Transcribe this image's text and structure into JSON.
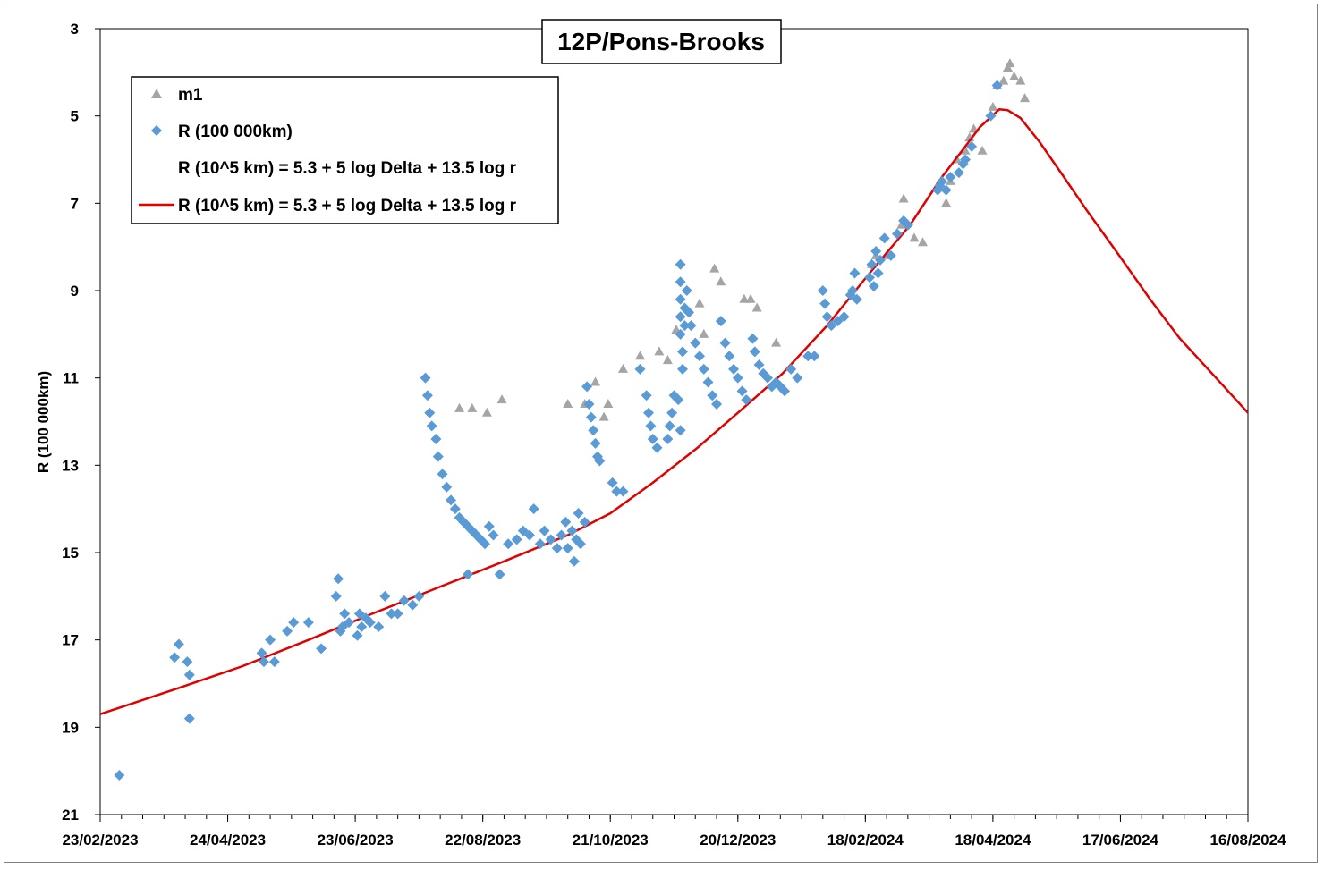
{
  "chart_data": {
    "type": "scatter",
    "title": "12P/Pons-Brooks",
    "xlabel": "",
    "ylabel": "R (100 000km)",
    "x_type": "date",
    "xlim": [
      "2023-02-23",
      "2024-08-16"
    ],
    "ylim": [
      3,
      21
    ],
    "y_inverted": true,
    "x_tick_labels": [
      "23/02/2023",
      "24/04/2023",
      "23/06/2023",
      "22/08/2023",
      "21/10/2023",
      "20/12/2023",
      "18/02/2024",
      "18/04/2024",
      "17/06/2024",
      "16/08/2024"
    ],
    "y_tick_labels": [
      "3",
      "5",
      "7",
      "9",
      "11",
      "13",
      "15",
      "17",
      "19",
      "21"
    ],
    "grid": false,
    "legend_position": "top-left",
    "colors": {
      "m1": "#a5a5a5",
      "R": "#5b9bd5",
      "model": "#e00000"
    },
    "legend": [
      {
        "label": "m1",
        "marker": "triangle",
        "color": "#a5a5a5"
      },
      {
        "label": "R (100 000km)",
        "marker": "diamond",
        "color": "#5b9bd5"
      },
      {
        "label": "R (10^5 km) = 5.3 + 5 log Delta + 13.5 log r",
        "marker": "none",
        "color": "none"
      },
      {
        "label": "R (10^5 km) = 5.3 + 5 log Delta + 13.5 log r",
        "marker": "line",
        "color": "#e00000"
      }
    ],
    "series": [
      {
        "name": "m1",
        "marker": "triangle",
        "points": [
          [
            "2023-08-11",
            11.7
          ],
          [
            "2023-08-17",
            11.7
          ],
          [
            "2023-08-24",
            11.8
          ],
          [
            "2023-08-31",
            11.5
          ],
          [
            "2023-10-01",
            11.6
          ],
          [
            "2023-10-09",
            11.6
          ],
          [
            "2023-10-14",
            11.1
          ],
          [
            "2023-10-20",
            11.6
          ],
          [
            "2023-10-27",
            10.8
          ],
          [
            "2023-10-18",
            11.9
          ],
          [
            "2023-11-04",
            10.5
          ],
          [
            "2023-11-13",
            10.4
          ],
          [
            "2023-11-17",
            10.6
          ],
          [
            "2023-11-21",
            9.9
          ],
          [
            "2023-12-02",
            9.3
          ],
          [
            "2023-12-04",
            10.0
          ],
          [
            "2023-12-09",
            8.5
          ],
          [
            "2023-12-12",
            8.8
          ],
          [
            "2023-12-23",
            9.2
          ],
          [
            "2023-12-26",
            9.2
          ],
          [
            "2023-12-29",
            9.4
          ],
          [
            "2024-01-07",
            10.2
          ],
          [
            "2024-02-21",
            8.4
          ],
          [
            "2024-02-23",
            8.2
          ],
          [
            "2024-02-28",
            8.2
          ],
          [
            "2024-03-06",
            7.5
          ],
          [
            "2024-03-07",
            6.9
          ],
          [
            "2024-03-12",
            7.8
          ],
          [
            "2024-03-16",
            7.9
          ],
          [
            "2024-03-23",
            6.6
          ],
          [
            "2024-03-27",
            7.0
          ],
          [
            "2024-03-29",
            6.5
          ],
          [
            "2024-04-01",
            6.0
          ],
          [
            "2024-04-05",
            5.8
          ],
          [
            "2024-04-07",
            5.5
          ],
          [
            "2024-04-09",
            5.3
          ],
          [
            "2024-04-13",
            5.8
          ],
          [
            "2024-04-18",
            4.8
          ],
          [
            "2024-04-20",
            4.3
          ],
          [
            "2024-04-25",
            3.9
          ],
          [
            "2024-04-28",
            4.1
          ],
          [
            "2024-05-01",
            4.2
          ],
          [
            "2024-05-03",
            4.6
          ],
          [
            "2024-04-26",
            3.8
          ],
          [
            "2024-04-23",
            4.2
          ]
        ]
      },
      {
        "name": "R (100 000km)",
        "marker": "diamond",
        "points": [
          [
            "2023-03-04",
            20.1
          ],
          [
            "2023-03-30",
            17.4
          ],
          [
            "2023-04-01",
            17.1
          ],
          [
            "2023-04-05",
            17.5
          ],
          [
            "2023-04-06",
            17.8
          ],
          [
            "2023-04-06",
            18.8
          ],
          [
            "2023-05-10",
            17.3
          ],
          [
            "2023-05-11",
            17.5
          ],
          [
            "2023-05-14",
            17.0
          ],
          [
            "2023-05-16",
            17.5
          ],
          [
            "2023-05-22",
            16.8
          ],
          [
            "2023-05-25",
            16.6
          ],
          [
            "2023-06-01",
            16.6
          ],
          [
            "2023-06-07",
            17.2
          ],
          [
            "2023-06-14",
            16.0
          ],
          [
            "2023-06-15",
            15.6
          ],
          [
            "2023-06-16",
            16.8
          ],
          [
            "2023-06-17",
            16.7
          ],
          [
            "2023-06-18",
            16.4
          ],
          [
            "2023-06-20",
            16.6
          ],
          [
            "2023-06-24",
            16.9
          ],
          [
            "2023-06-25",
            16.4
          ],
          [
            "2023-06-26",
            16.7
          ],
          [
            "2023-06-28",
            16.5
          ],
          [
            "2023-06-30",
            16.6
          ],
          [
            "2023-07-04",
            16.7
          ],
          [
            "2023-07-07",
            16.0
          ],
          [
            "2023-07-10",
            16.4
          ],
          [
            "2023-07-13",
            16.4
          ],
          [
            "2023-07-16",
            16.1
          ],
          [
            "2023-07-20",
            16.2
          ],
          [
            "2023-07-23",
            16.0
          ],
          [
            "2023-07-26",
            11.0
          ],
          [
            "2023-07-27",
            11.4
          ],
          [
            "2023-07-28",
            11.8
          ],
          [
            "2023-07-29",
            12.1
          ],
          [
            "2023-07-31",
            12.4
          ],
          [
            "2023-08-01",
            12.8
          ],
          [
            "2023-08-03",
            13.2
          ],
          [
            "2023-08-05",
            13.5
          ],
          [
            "2023-08-07",
            13.8
          ],
          [
            "2023-08-09",
            14.0
          ],
          [
            "2023-08-11",
            14.2
          ],
          [
            "2023-08-13",
            14.3
          ],
          [
            "2023-08-15",
            14.4
          ],
          [
            "2023-08-17",
            14.5
          ],
          [
            "2023-08-19",
            14.6
          ],
          [
            "2023-08-21",
            14.7
          ],
          [
            "2023-08-23",
            14.8
          ],
          [
            "2023-08-25",
            14.4
          ],
          [
            "2023-08-27",
            14.6
          ],
          [
            "2023-08-15",
            15.5
          ],
          [
            "2023-08-30",
            15.5
          ],
          [
            "2023-09-03",
            14.8
          ],
          [
            "2023-09-07",
            14.7
          ],
          [
            "2023-09-10",
            14.5
          ],
          [
            "2023-09-13",
            14.6
          ],
          [
            "2023-09-15",
            14.0
          ],
          [
            "2023-09-18",
            14.8
          ],
          [
            "2023-09-20",
            14.5
          ],
          [
            "2023-09-23",
            14.7
          ],
          [
            "2023-09-26",
            14.9
          ],
          [
            "2023-09-28",
            14.6
          ],
          [
            "2023-09-30",
            14.3
          ],
          [
            "2023-10-01",
            14.9
          ],
          [
            "2023-10-03",
            14.5
          ],
          [
            "2023-10-04",
            15.2
          ],
          [
            "2023-10-05",
            14.7
          ],
          [
            "2023-10-06",
            14.1
          ],
          [
            "2023-10-07",
            14.8
          ],
          [
            "2023-10-09",
            14.3
          ],
          [
            "2023-10-10",
            11.2
          ],
          [
            "2023-10-11",
            11.6
          ],
          [
            "2023-10-12",
            11.9
          ],
          [
            "2023-10-13",
            12.2
          ],
          [
            "2023-10-14",
            12.5
          ],
          [
            "2023-10-15",
            12.8
          ],
          [
            "2023-10-16",
            12.9
          ],
          [
            "2023-10-22",
            13.4
          ],
          [
            "2023-10-24",
            13.6
          ],
          [
            "2023-10-27",
            13.6
          ],
          [
            "2023-11-04",
            10.8
          ],
          [
            "2023-11-07",
            11.4
          ],
          [
            "2023-11-08",
            11.8
          ],
          [
            "2023-11-09",
            12.1
          ],
          [
            "2023-11-10",
            12.4
          ],
          [
            "2023-11-12",
            12.6
          ],
          [
            "2023-11-17",
            12.4
          ],
          [
            "2023-11-18",
            12.1
          ],
          [
            "2023-11-19",
            11.8
          ],
          [
            "2023-11-20",
            11.4
          ],
          [
            "2023-11-22",
            11.5
          ],
          [
            "2023-11-23",
            12.2
          ],
          [
            "2023-11-23",
            8.4
          ],
          [
            "2023-11-23",
            8.8
          ],
          [
            "2023-11-23",
            9.2
          ],
          [
            "2023-11-23",
            9.6
          ],
          [
            "2023-11-23",
            10.0
          ],
          [
            "2023-11-24",
            10.4
          ],
          [
            "2023-11-24",
            10.8
          ],
          [
            "2023-11-25",
            9.8
          ],
          [
            "2023-11-25",
            9.4
          ],
          [
            "2023-11-26",
            9.0
          ],
          [
            "2023-11-27",
            9.5
          ],
          [
            "2023-11-28",
            9.8
          ],
          [
            "2023-11-30",
            10.2
          ],
          [
            "2023-12-02",
            10.5
          ],
          [
            "2023-12-04",
            10.8
          ],
          [
            "2023-12-06",
            11.1
          ],
          [
            "2023-12-08",
            11.4
          ],
          [
            "2023-12-10",
            11.6
          ],
          [
            "2023-12-12",
            9.7
          ],
          [
            "2023-12-14",
            10.2
          ],
          [
            "2023-12-16",
            10.5
          ],
          [
            "2023-12-18",
            10.8
          ],
          [
            "2023-12-20",
            11.0
          ],
          [
            "2023-12-22",
            11.3
          ],
          [
            "2023-12-24",
            11.5
          ],
          [
            "2023-12-27",
            10.1
          ],
          [
            "2023-12-28",
            10.4
          ],
          [
            "2023-12-30",
            10.7
          ],
          [
            "2024-01-01",
            10.9
          ],
          [
            "2024-01-03",
            11.0
          ],
          [
            "2024-01-05",
            11.2
          ],
          [
            "2024-01-07",
            11.1
          ],
          [
            "2024-01-09",
            11.2
          ],
          [
            "2024-01-11",
            11.3
          ],
          [
            "2024-01-14",
            10.8
          ],
          [
            "2024-01-17",
            11.0
          ],
          [
            "2024-01-22",
            10.5
          ],
          [
            "2024-01-25",
            10.5
          ],
          [
            "2024-01-29",
            9.0
          ],
          [
            "2024-01-30",
            9.3
          ],
          [
            "2024-01-31",
            9.6
          ],
          [
            "2024-02-02",
            9.8
          ],
          [
            "2024-02-05",
            9.7
          ],
          [
            "2024-02-08",
            9.6
          ],
          [
            "2024-02-11",
            9.1
          ],
          [
            "2024-02-12",
            9.0
          ],
          [
            "2024-02-13",
            8.6
          ],
          [
            "2024-02-14",
            9.2
          ],
          [
            "2024-02-20",
            8.7
          ],
          [
            "2024-02-21",
            8.4
          ],
          [
            "2024-02-22",
            8.9
          ],
          [
            "2024-02-23",
            8.1
          ],
          [
            "2024-02-24",
            8.6
          ],
          [
            "2024-02-25",
            8.3
          ],
          [
            "2024-02-27",
            7.8
          ],
          [
            "2024-03-01",
            8.2
          ],
          [
            "2024-03-04",
            7.7
          ],
          [
            "2024-03-07",
            7.4
          ],
          [
            "2024-03-09",
            7.5
          ],
          [
            "2024-03-23",
            6.7
          ],
          [
            "2024-03-24",
            6.6
          ],
          [
            "2024-03-25",
            6.5
          ],
          [
            "2024-03-27",
            6.7
          ],
          [
            "2024-03-29",
            6.4
          ],
          [
            "2024-04-02",
            6.3
          ],
          [
            "2024-04-04",
            6.1
          ],
          [
            "2024-04-05",
            6.0
          ],
          [
            "2024-04-08",
            5.7
          ],
          [
            "2024-04-17",
            5.0
          ],
          [
            "2024-04-20",
            4.3
          ]
        ]
      },
      {
        "name": "R (10^5 km) = 5.3 + 5 log Delta + 13.5 log r",
        "marker": "line",
        "points": [
          [
            "2023-02-23",
            18.7
          ],
          [
            "2023-04-01",
            18.1
          ],
          [
            "2023-05-01",
            17.6
          ],
          [
            "2023-06-01",
            17.0
          ],
          [
            "2023-07-01",
            16.4
          ],
          [
            "2023-08-01",
            15.8
          ],
          [
            "2023-09-01",
            15.2
          ],
          [
            "2023-10-01",
            14.6
          ],
          [
            "2023-10-21",
            14.1
          ],
          [
            "2023-11-10",
            13.4
          ],
          [
            "2023-12-01",
            12.6
          ],
          [
            "2023-12-20",
            11.8
          ],
          [
            "2024-01-10",
            10.9
          ],
          [
            "2024-01-31",
            9.8
          ],
          [
            "2024-02-20",
            8.6
          ],
          [
            "2024-03-10",
            7.5
          ],
          [
            "2024-03-25",
            6.4
          ],
          [
            "2024-04-05",
            5.7
          ],
          [
            "2024-04-12",
            5.25
          ],
          [
            "2024-04-21",
            4.85
          ],
          [
            "2024-04-25",
            4.87
          ],
          [
            "2024-05-01",
            5.05
          ],
          [
            "2024-05-10",
            5.6
          ],
          [
            "2024-05-20",
            6.3
          ],
          [
            "2024-06-01",
            7.15
          ],
          [
            "2024-06-15",
            8.1
          ],
          [
            "2024-07-01",
            9.2
          ],
          [
            "2024-07-15",
            10.1
          ],
          [
            "2024-08-01",
            11.0
          ],
          [
            "2024-08-16",
            11.8
          ]
        ]
      }
    ]
  }
}
